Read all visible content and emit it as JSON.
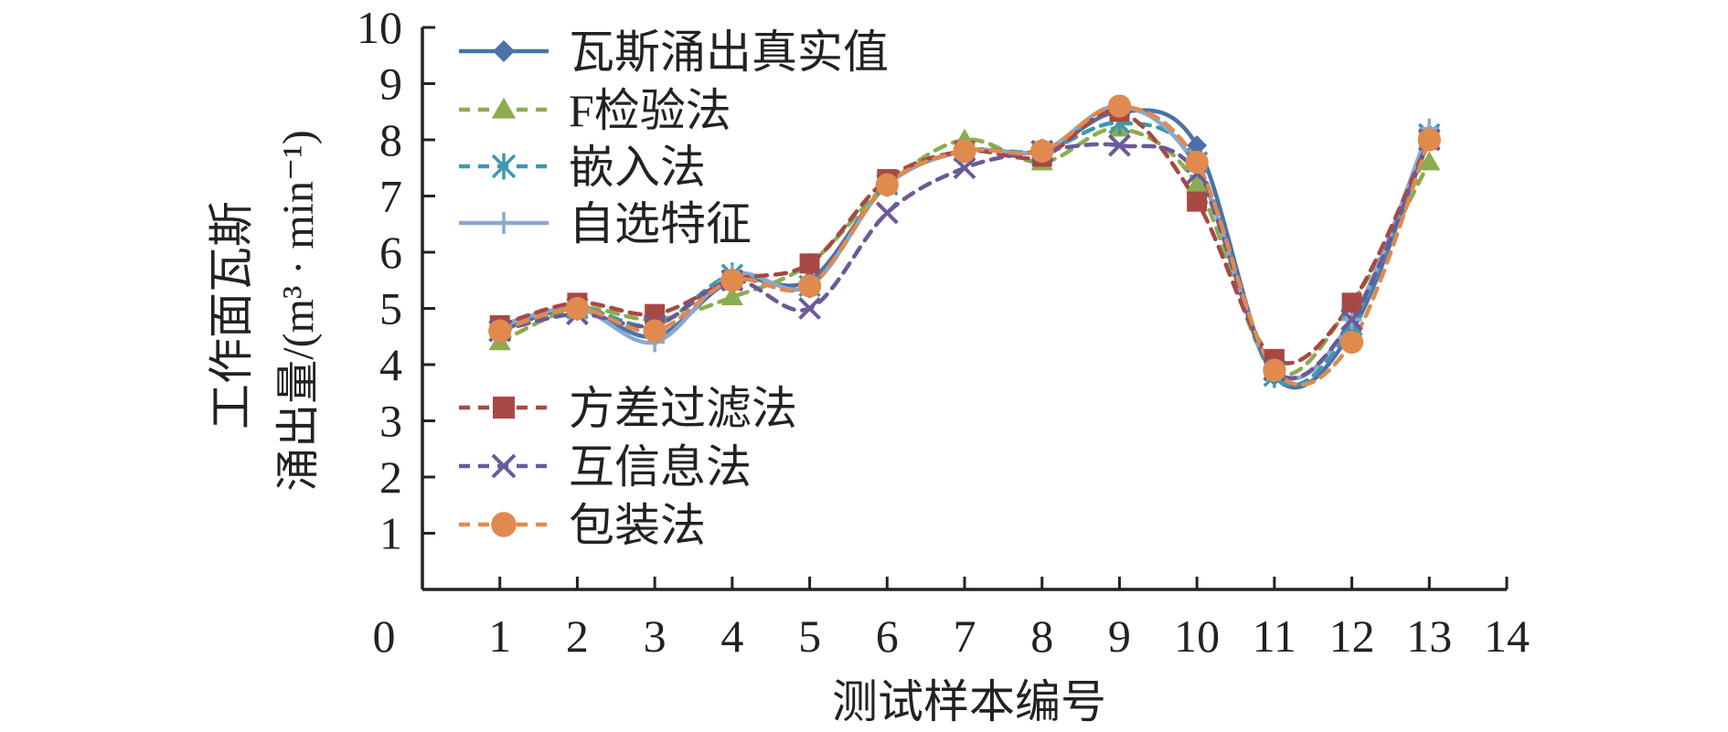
{
  "chart_data": {
    "type": "line",
    "xlabel": "测试样本编号",
    "ylabel_line1": "工作面瓦斯",
    "ylabel_line2": "涌出量/(m³ · min⁻¹)",
    "xlim": [
      0,
      14
    ],
    "ylim": [
      0,
      10
    ],
    "xticks": [
      0,
      1,
      2,
      3,
      4,
      5,
      6,
      7,
      8,
      9,
      10,
      11,
      12,
      13,
      14
    ],
    "yticks": [
      1,
      2,
      3,
      4,
      5,
      6,
      7,
      8,
      9,
      10
    ],
    "grid": false,
    "legend_placement": "top-left",
    "x": [
      1,
      2,
      3,
      4,
      5,
      6,
      7,
      8,
      9,
      10,
      11,
      12,
      13
    ],
    "series": [
      {
        "name": "瓦斯涌出真实值",
        "color": "#4a72a8",
        "dash": "solid",
        "marker": "diamond",
        "values": [
          4.6,
          5.0,
          4.5,
          5.5,
          5.5,
          7.2,
          7.8,
          7.8,
          8.5,
          7.9,
          3.8,
          4.6,
          8.1
        ]
      },
      {
        "name": "F检验法",
        "color": "#8cac50",
        "dash": "dashed",
        "marker": "triangle",
        "values": [
          4.4,
          5.0,
          4.8,
          5.2,
          5.8,
          7.2,
          8.0,
          7.6,
          8.2,
          7.2,
          3.9,
          5.1,
          7.6
        ]
      },
      {
        "name": "嵌入法",
        "color": "#3e97ae",
        "dash": "dashed",
        "marker": "asterisk",
        "values": [
          4.6,
          5.0,
          4.7,
          5.6,
          5.4,
          7.2,
          7.8,
          7.8,
          8.3,
          7.6,
          3.8,
          4.7,
          8.1
        ]
      },
      {
        "name": "自选特征",
        "color": "#8aa8d0",
        "dash": "solid",
        "marker": "plus",
        "values": [
          4.7,
          5.0,
          4.4,
          5.6,
          5.4,
          7.2,
          7.8,
          7.8,
          8.6,
          7.5,
          3.9,
          4.8,
          8.2
        ]
      },
      {
        "name": "方差过滤法",
        "color": "#a84844",
        "dash": "dashed",
        "marker": "square",
        "values": [
          4.7,
          5.1,
          4.9,
          5.5,
          5.8,
          7.3,
          7.8,
          7.7,
          8.5,
          6.9,
          4.1,
          5.1,
          8.0
        ]
      },
      {
        "name": "互信息法",
        "color": "#6a5a98",
        "dash": "dashed",
        "marker": "x",
        "values": [
          4.6,
          4.9,
          4.7,
          5.5,
          5.0,
          6.7,
          7.5,
          7.8,
          7.9,
          7.4,
          3.9,
          4.8,
          8.0
        ]
      },
      {
        "name": "包装法",
        "color": "#e08a4e",
        "dash": "dashed",
        "marker": "circle",
        "values": [
          4.6,
          5.0,
          4.6,
          5.5,
          5.4,
          7.2,
          7.8,
          7.8,
          8.6,
          7.6,
          3.9,
          4.4,
          8.0
        ]
      }
    ]
  }
}
